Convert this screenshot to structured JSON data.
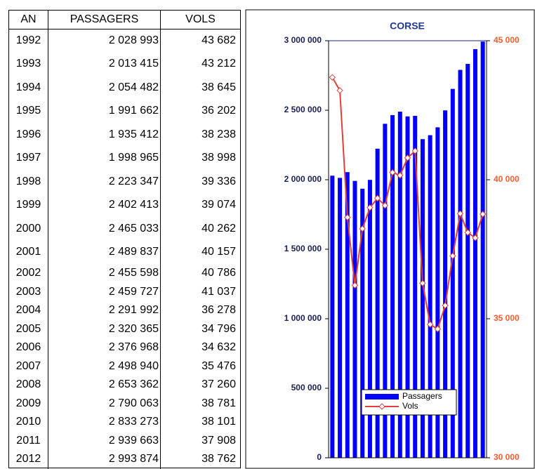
{
  "table": {
    "header": [
      "AN",
      "PASSAGERS",
      "VOLS"
    ],
    "rows": [
      [
        "1992",
        "2 028 993",
        "43 682"
      ],
      [
        "1993",
        "2 013 415",
        "43 212"
      ],
      [
        "1994",
        "2 054 482",
        "38 645"
      ],
      [
        "1995",
        "1 991 662",
        "36 202"
      ],
      [
        "1996",
        "1 935 412",
        "38 238"
      ],
      [
        "1997",
        "1 998 965",
        "38 998"
      ],
      [
        "1998",
        "2 223 347",
        "39 336"
      ],
      [
        "1999",
        "2 402 413",
        "39 074"
      ],
      [
        "2000",
        "2 465 033",
        "40 262"
      ],
      [
        "2001",
        "2 489 837",
        "40 157"
      ],
      [
        "2002",
        "2 455 598",
        "40 786"
      ],
      [
        "2003",
        "2 459 727",
        "41 037"
      ],
      [
        "2004",
        "2 291 992",
        "36 278"
      ],
      [
        "2005",
        "2 320 365",
        "34 796"
      ],
      [
        "2006",
        "2 376 968",
        "34 632"
      ],
      [
        "2007",
        "2 498 940",
        "35 476"
      ],
      [
        "2008",
        "2 653 362",
        "37 260"
      ],
      [
        "2009",
        "2 790 063",
        "38 781"
      ],
      [
        "2010",
        "2 833 273",
        "38 101"
      ],
      [
        "2011",
        "2 939 663",
        "37 908"
      ],
      [
        "2012",
        "2 993 874",
        "38 762"
      ]
    ]
  },
  "chart_data": {
    "type": "bar",
    "title": "CORSE",
    "categories": [
      null,
      null,
      null,
      null,
      null,
      null,
      null,
      null,
      null,
      null,
      null,
      null,
      null,
      null,
      null,
      null,
      null,
      null,
      null,
      null,
      null
    ],
    "series": [
      {
        "name": "Passagers",
        "type": "bar",
        "color": "#0000ff",
        "values": [
          2028993,
          2013415,
          2054482,
          1991662,
          1935412,
          1998965,
          2223347,
          2402413,
          2465033,
          2489837,
          2455598,
          2459727,
          2291992,
          2320365,
          2376968,
          2498940,
          2653362,
          2790063,
          2833273,
          2939663,
          2993874
        ]
      },
      {
        "name": "Vols",
        "type": "line",
        "axis": "y2",
        "color": "#e0403c",
        "values": [
          43682,
          43212,
          38645,
          36202,
          38238,
          38998,
          39336,
          39074,
          40262,
          40157,
          40786,
          41037,
          36278,
          34796,
          34632,
          35476,
          37260,
          38781,
          38101,
          37908,
          38762
        ]
      }
    ],
    "ylim": [
      0,
      3000000
    ],
    "yticks": [
      0,
      {
        "value": 500000,
        "label": "500 000"
      },
      {
        "value": 1000000,
        "label": "1 000 000"
      },
      {
        "value": 1500000,
        "label": "1 500 000"
      },
      {
        "value": 2000000,
        "label": "2 000 000"
      },
      {
        "value": 2500000,
        "label": "2 500 000"
      },
      {
        "value": 3000000,
        "label": "3 000 000"
      }
    ],
    "y2lim": [
      30000,
      45000
    ],
    "y2ticks": [
      {
        "value": 30000,
        "label": "30 000"
      },
      {
        "value": 35000,
        "label": "35 000"
      },
      {
        "value": 40000,
        "label": "40 000"
      },
      {
        "value": 45000,
        "label": "45 000"
      }
    ],
    "legend": "lower right"
  }
}
